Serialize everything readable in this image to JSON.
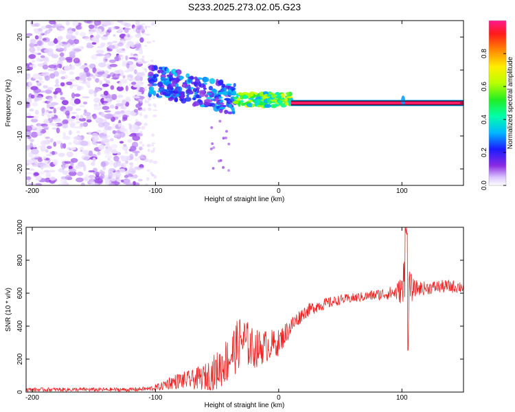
{
  "title": "S233.2025.273.02.05.G23",
  "colors": {
    "snr_line": "#ee2222",
    "ref_band": "#000000",
    "axis": "#000000"
  },
  "chart_data": [
    {
      "type": "heatmap",
      "id": "spectrogram",
      "xlabel": "Height of straight line (km)",
      "ylabel": "Frequency (Hz)",
      "xlim": [
        -205,
        150
      ],
      "ylim": [
        -25,
        25
      ],
      "x_ticks": [
        -200,
        -100,
        0,
        100
      ],
      "y_ticks": [
        -20,
        -10,
        0,
        10,
        20
      ],
      "colorbar": {
        "label": "Normalized spectral amplitude",
        "range": [
          0,
          1
        ],
        "ticks": [
          "0.0",
          "0.2",
          "0.4",
          "0.6",
          "0.8"
        ],
        "tick_values": [
          0.0,
          0.2,
          0.4,
          0.6,
          0.8
        ]
      },
      "reference_band_hz": [
        -0.6,
        0.6
      ],
      "reference_band_start_km": 10,
      "features": [
        {
          "x_range": [
            -205,
            -110
          ],
          "f_range": [
            -25,
            25
          ],
          "amplitude": [
            0.02,
            0.12
          ],
          "description": "noise"
        },
        {
          "x_range": [
            -105,
            -35
          ],
          "f_range": [
            -4,
            10
          ],
          "amplitude": [
            0.1,
            0.35
          ],
          "description": "scattered signal"
        },
        {
          "x_range": [
            -35,
            10
          ],
          "f_range": [
            -1,
            3
          ],
          "amplitude": [
            0.3,
            0.7
          ],
          "description": "converging signal"
        },
        {
          "x_range": [
            10,
            150
          ],
          "f_range": [
            -0.5,
            0.5
          ],
          "amplitude": [
            0.9,
            1.0
          ],
          "description": "steady carrier"
        }
      ]
    },
    {
      "type": "line",
      "id": "snr",
      "xlabel": "Height of straight line (km)",
      "ylabel": "SNR (10 * v/v)",
      "xlim": [
        -205,
        150
      ],
      "ylim": [
        0,
        1000
      ],
      "x_ticks": [
        -200,
        -100,
        0,
        100
      ],
      "y_ticks": [
        0,
        200,
        400,
        600,
        800,
        1000
      ],
      "series": [
        {
          "name": "SNR",
          "x": [
            -205,
            -180,
            -150,
            -120,
            -105,
            -95,
            -90,
            -80,
            -70,
            -60,
            -50,
            -40,
            -30,
            -20,
            -10,
            0,
            10,
            20,
            30,
            40,
            50,
            60,
            70,
            80,
            90,
            95,
            100,
            102,
            104,
            106,
            110,
            120,
            130,
            140,
            150
          ],
          "mean": [
            15,
            15,
            15,
            15,
            20,
            35,
            55,
            70,
            75,
            90,
            130,
            210,
            320,
            260,
            280,
            300,
            400,
            480,
            520,
            540,
            560,
            570,
            580,
            590,
            600,
            605,
            620,
            640,
            600,
            620,
            630,
            630,
            640,
            640,
            640
          ],
          "spread": [
            12,
            12,
            12,
            12,
            15,
            25,
            40,
            50,
            60,
            80,
            120,
            150,
            160,
            120,
            100,
            80,
            60,
            40,
            40,
            35,
            30,
            30,
            30,
            35,
            40,
            50,
            90,
            250,
            280,
            120,
            50,
            40,
            40,
            40,
            40
          ]
        }
      ]
    }
  ]
}
